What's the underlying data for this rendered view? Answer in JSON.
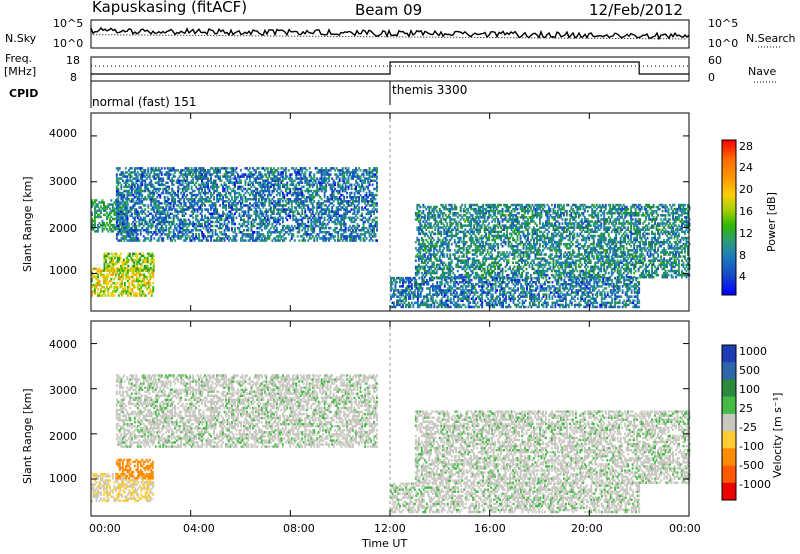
{
  "header": {
    "station": "Kapuskasing (fitACF)",
    "beam": "Beam 09",
    "date": "12/Feb/2012"
  },
  "aux": {
    "nsky_label": "N.Sky",
    "nsky_ticks": [
      "10^5",
      "10^0"
    ],
    "nsearch_label": "N.Search",
    "freq_label": "Freq.",
    "freq_unit": "[MHz]",
    "freq_ticks": [
      "18",
      "8"
    ],
    "nave_ticks": [
      "60",
      "0"
    ],
    "nave_label": "Nave",
    "cpid_label": "CPID",
    "cpid_modes": [
      "normal (fast) 151",
      "themis 3300"
    ]
  },
  "axes": {
    "y_label": "Slant Range [km]",
    "x_label": "Time UT",
    "y_ticks": [
      "4000",
      "3000",
      "2000",
      "1000"
    ],
    "x_ticks": [
      "00:00",
      "04:00",
      "08:00",
      "12:00",
      "16:00",
      "20:00",
      "00:00"
    ]
  },
  "power_colorbar": {
    "label": "Power [dB]",
    "ticks": [
      "28",
      "24",
      "20",
      "16",
      "12",
      "8",
      "4"
    ],
    "colors": [
      "#ff0000",
      "#ff6a00",
      "#ff9a00",
      "#ffcc00",
      "#a8d000",
      "#31b800",
      "#1e8c3a",
      "#2f9b7a",
      "#1c7db8",
      "#1649c8",
      "#0000ff"
    ]
  },
  "velocity_colorbar": {
    "label": "Velocity [m s⁻¹]",
    "ticks": [
      "1000",
      "500",
      "100",
      "25",
      "-25",
      "-100",
      "-500",
      "-1000"
    ],
    "colors": [
      "#1e3cb4",
      "#2a66a8",
      "#2b8a3e",
      "#44bb44",
      "#c8c8c0",
      "#ffcc33",
      "#ff8c00",
      "#ff5a00",
      "#ee0000"
    ]
  },
  "chart_data": {
    "type": "heatmap",
    "title": "Kapuskasing (fitACF)",
    "xlabel": "Time UT",
    "ylabel": "Slant Range [km]",
    "xlim": [
      "00:00",
      "24:00"
    ],
    "ylim": [
      180,
      4500
    ],
    "cpid_segments": [
      {
        "start_hour": 0,
        "end_hour": 12,
        "mode": "normal (fast) 151"
      },
      {
        "start_hour": 12,
        "end_hour": 24,
        "mode": "themis 3300"
      }
    ],
    "power_echo_regions": [
      {
        "hours": [
          0.0,
          2.5
        ],
        "range_km": [
          500,
          1100
        ],
        "power_db": 20
      },
      {
        "hours": [
          0.5,
          2.5
        ],
        "range_km": [
          1050,
          1450
        ],
        "power_db": 18
      },
      {
        "hours": [
          0.0,
          1.5
        ],
        "range_km": [
          1900,
          2600
        ],
        "power_db": 12
      },
      {
        "hours": [
          1.0,
          11.5
        ],
        "range_km": [
          1700,
          3300
        ],
        "power_db": 8
      },
      {
        "hours": [
          12.0,
          22.0
        ],
        "range_km": [
          250,
          900
        ],
        "power_db": 8
      },
      {
        "hours": [
          13.0,
          24.0
        ],
        "range_km": [
          900,
          2500
        ],
        "power_db": 10
      }
    ],
    "velocity_echo_regions": [
      {
        "hours": [
          0.0,
          2.5
        ],
        "range_km": [
          500,
          1100
        ],
        "velocity_mps": -25
      },
      {
        "hours": [
          1.0,
          2.5
        ],
        "range_km": [
          1000,
          1450
        ],
        "velocity_mps": -300
      },
      {
        "hours": [
          1.0,
          11.5
        ],
        "range_km": [
          1700,
          3300
        ],
        "velocity_mps": 0
      },
      {
        "hours": [
          12.0,
          22.0
        ],
        "range_km": [
          250,
          900
        ],
        "velocity_mps": 0
      },
      {
        "hours": [
          13.0,
          24.0
        ],
        "range_km": [
          900,
          2500
        ],
        "velocity_mps": 0
      }
    ]
  }
}
